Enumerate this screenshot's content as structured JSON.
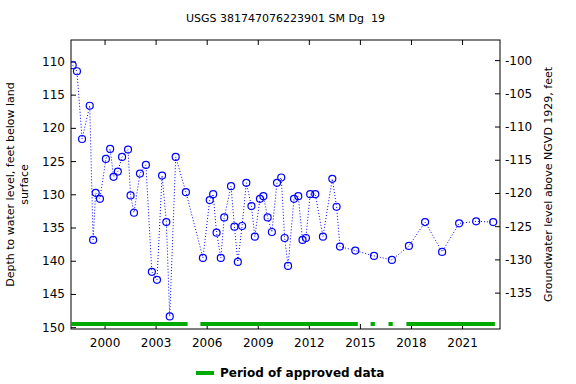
{
  "chart_data": {
    "type": "scatter",
    "title": "USGS 381747076223901 SM Dg  19",
    "ylabel": [
      "Depth to water level, feet below land",
      "surface"
    ],
    "y2label": "Groundwater level above NGVD 1929, feet",
    "x": [
      1998.1,
      1998.35,
      1998.65,
      1999.1,
      1999.3,
      1999.45,
      1999.7,
      2000.05,
      2000.3,
      2000.5,
      2000.75,
      2001.0,
      2001.35,
      2001.5,
      2001.7,
      2002.05,
      2002.4,
      2002.75,
      2003.05,
      2003.35,
      2003.6,
      2003.8,
      2004.15,
      2004.75,
      2005.75,
      2006.15,
      2006.35,
      2006.55,
      2006.8,
      2007.0,
      2007.4,
      2007.6,
      2007.8,
      2008.05,
      2008.3,
      2008.6,
      2008.8,
      2009.1,
      2009.3,
      2009.55,
      2009.8,
      2010.1,
      2010.35,
      2010.55,
      2010.75,
      2011.1,
      2011.35,
      2011.6,
      2011.8,
      2012.05,
      2012.35,
      2012.8,
      2013.35,
      2013.6,
      2013.8,
      2014.7,
      2015.8,
      2016.85,
      2017.85,
      2018.8,
      2019.8,
      2020.8,
      2021.8,
      2022.8
    ],
    "values": [
      110.5,
      111.4,
      121.6,
      116.6,
      136.8,
      129.7,
      130.6,
      124.6,
      123.1,
      127.3,
      126.5,
      124.3,
      123.2,
      130.1,
      132.7,
      126.8,
      125.5,
      141.6,
      142.8,
      127.1,
      134.1,
      148.3,
      124.3,
      129.6,
      139.5,
      130.8,
      129.9,
      135.7,
      139.5,
      133.4,
      128.7,
      134.8,
      140.1,
      134.7,
      128.2,
      131.7,
      136.3,
      130.6,
      130.2,
      133.4,
      135.6,
      128.2,
      127.4,
      136.5,
      140.7,
      130.6,
      130.2,
      136.8,
      136.5,
      129.9,
      129.9,
      136.3,
      127.6,
      131.8,
      137.8,
      138.4,
      139.2,
      139.8,
      137.7,
      134.1,
      138.6,
      134.3,
      134.0,
      134.1
    ],
    "color": "#0000ff",
    "marker": "circle",
    "line_style": "dotted",
    "xlim": [
      1998.0,
      2023.2
    ],
    "xticks": [
      2000,
      2003,
      2006,
      2009,
      2012,
      2015,
      2018,
      2021
    ],
    "ylim": [
      150.2,
      106.7
    ],
    "yticks": [
      110,
      115,
      120,
      125,
      130,
      135,
      140,
      145,
      150
    ],
    "y2lim": [
      -140.4,
      -96.9
    ],
    "y2ticks": [
      -100,
      -105,
      -110,
      -115,
      -120,
      -125,
      -130,
      -135
    ],
    "approved_periods": {
      "name": "Period of approved data",
      "color": "#00aa00",
      "ranges": [
        [
          1998.0,
          2004.85
        ],
        [
          2005.6,
          2014.85
        ],
        [
          2015.6,
          2015.85
        ],
        [
          2016.65,
          2016.9
        ],
        [
          2017.7,
          2022.9
        ]
      ]
    },
    "legend": "bottom"
  }
}
